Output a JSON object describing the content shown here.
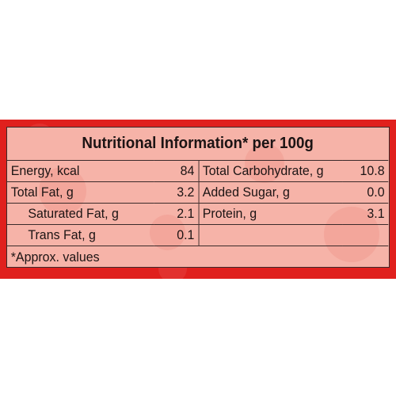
{
  "header": {
    "title": "Nutritional Information* per 100g"
  },
  "table": {
    "rows": [
      [
        "Energy, kcal",
        "84",
        "Total Carbohydrate, g",
        "10.8"
      ],
      [
        "Total Fat, g",
        "3.2",
        "Added Sugar, g",
        "0.0"
      ],
      [
        "Saturated Fat, g",
        "2.1",
        "Protein, g",
        "3.1"
      ],
      [
        "Trans Fat, g",
        "0.1"
      ]
    ]
  },
  "footnote": "*Approx. values"
}
